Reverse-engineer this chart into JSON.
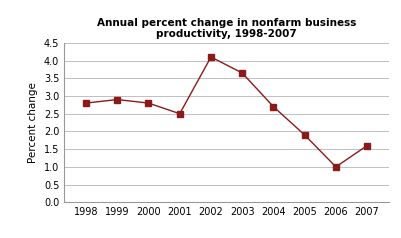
{
  "title": "Annual percent change in nonfarm business\nproductivity, 1998-2007",
  "xlabel": "",
  "ylabel": "Percent change",
  "years": [
    1998,
    1999,
    2000,
    2001,
    2002,
    2003,
    2004,
    2005,
    2006,
    2007
  ],
  "values": [
    2.8,
    2.9,
    2.8,
    2.5,
    4.1,
    3.65,
    2.7,
    1.9,
    1.0,
    1.6
  ],
  "ylim": [
    0.0,
    4.5
  ],
  "yticks": [
    0.0,
    0.5,
    1.0,
    1.5,
    2.0,
    2.5,
    3.0,
    3.5,
    4.0,
    4.5
  ],
  "line_color": "#8B1A1A",
  "marker": "s",
  "marker_size": 4,
  "background_color": "#ffffff",
  "plot_bg_color": "#ffffff",
  "title_fontsize": 7.5,
  "axis_label_fontsize": 7.5,
  "tick_fontsize": 7
}
